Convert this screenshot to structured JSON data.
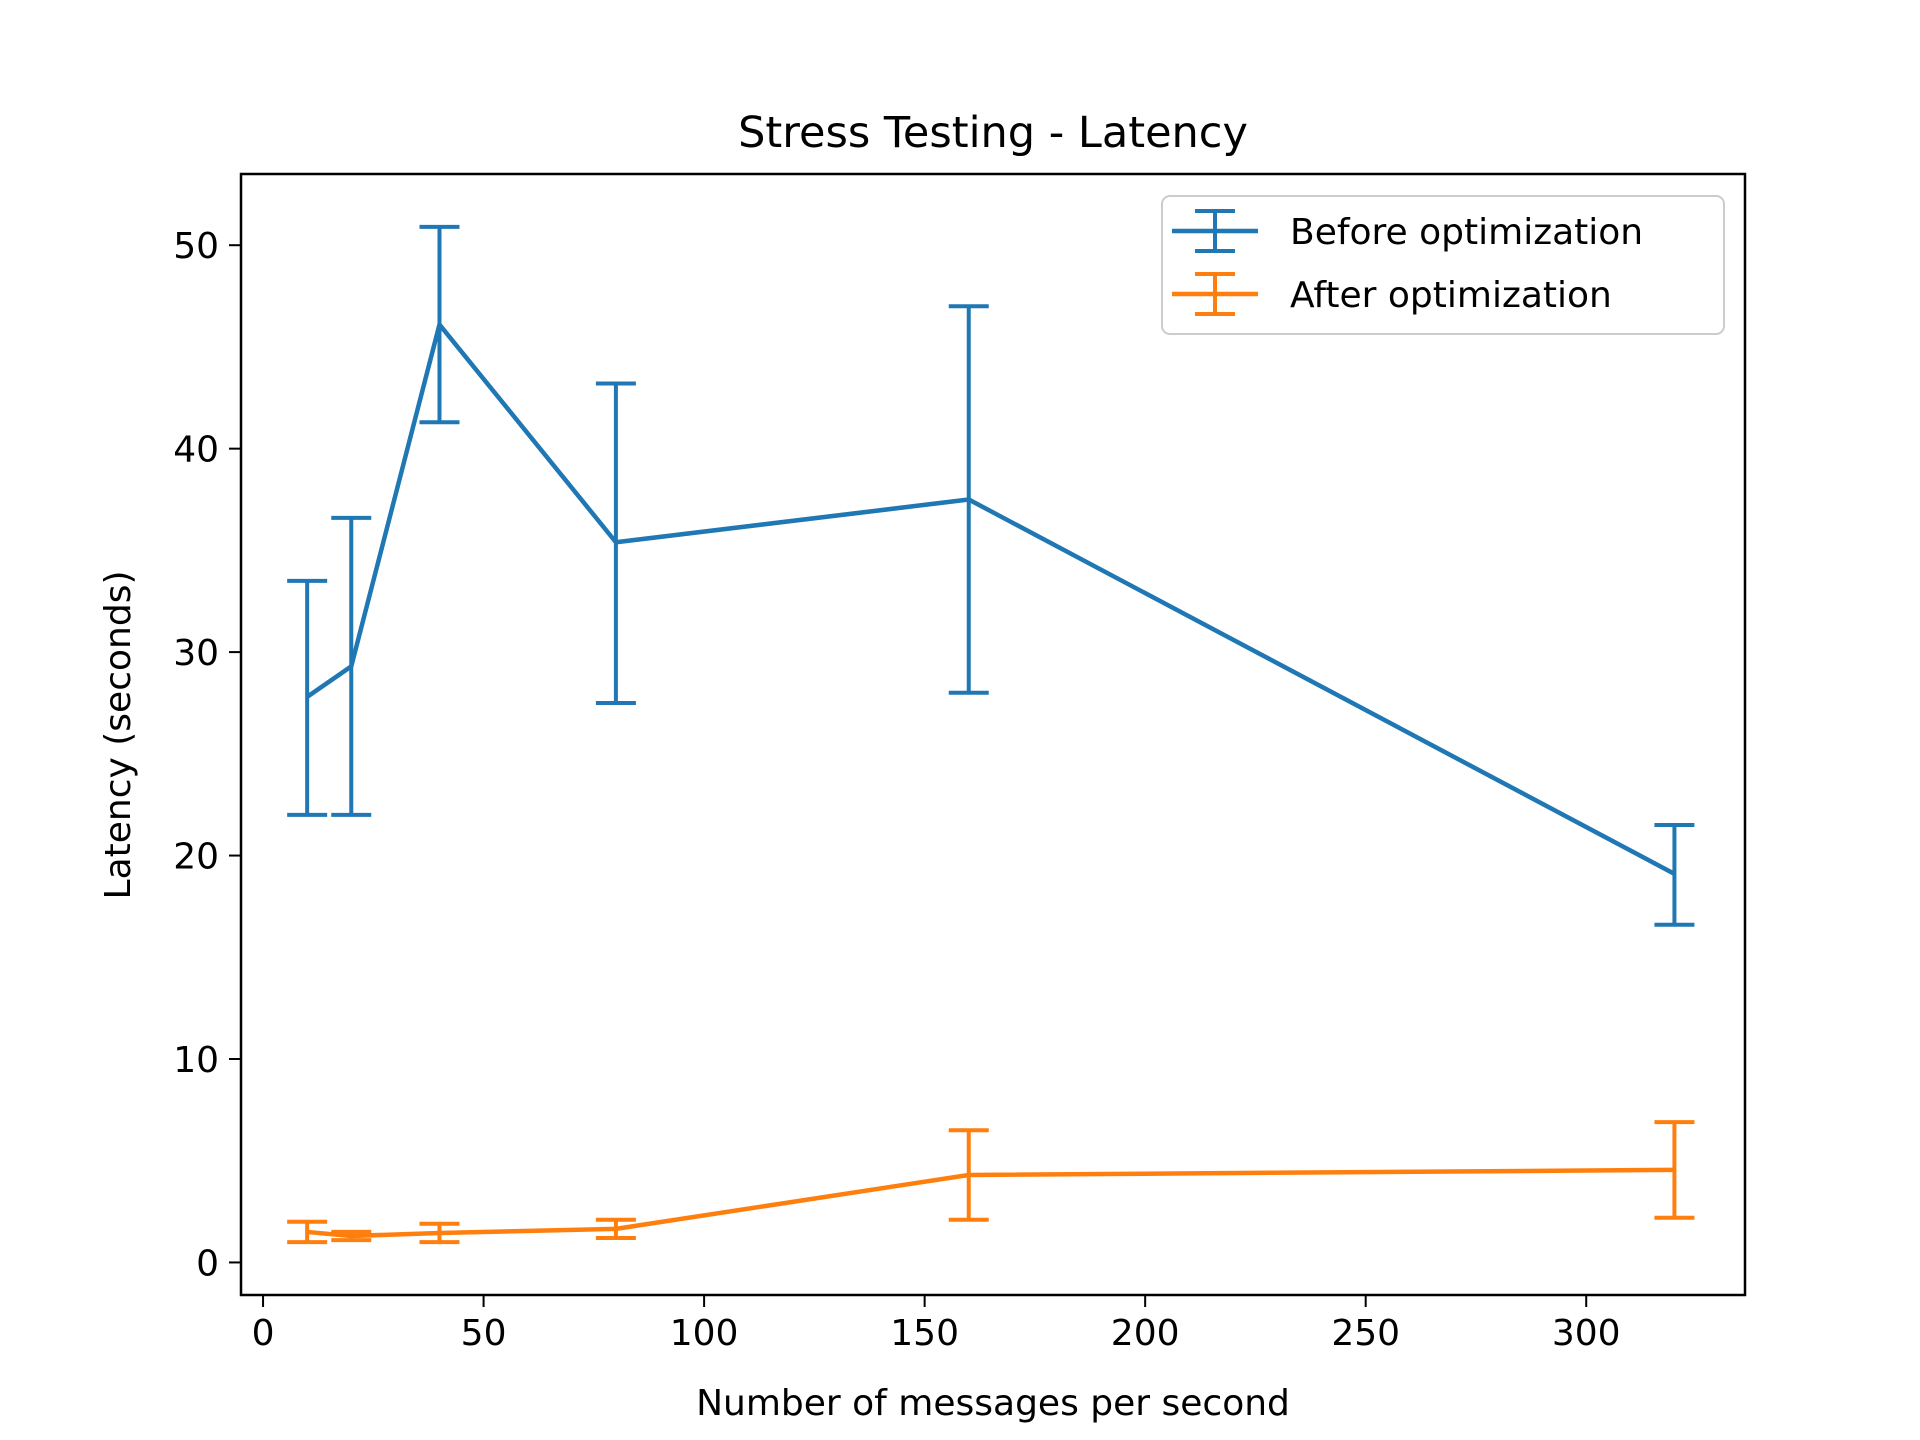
{
  "chart_data": {
    "type": "line",
    "title": "Stress Testing - Latency",
    "xlabel": "Number of messages per second",
    "ylabel": "Latency (seconds)",
    "xlim": [
      -5,
      336
    ],
    "ylim": [
      -1.6,
      53.5
    ],
    "xticks": [
      0,
      50,
      100,
      150,
      200,
      250,
      300
    ],
    "yticks": [
      0,
      10,
      20,
      30,
      40,
      50
    ],
    "grid": false,
    "legend_position": "top-right",
    "x": [
      10,
      20,
      40,
      80,
      160,
      320
    ],
    "series": [
      {
        "name": "Before optimization",
        "color": "#1f77b4",
        "values": [
          27.8,
          29.3,
          46.1,
          35.4,
          37.5,
          19.1
        ],
        "error_low": [
          22.0,
          22.0,
          41.3,
          27.5,
          28.0,
          16.6
        ],
        "error_high": [
          33.5,
          36.6,
          50.9,
          43.2,
          47.0,
          21.5
        ]
      },
      {
        "name": "After optimization",
        "color": "#ff7f0e",
        "values": [
          1.5,
          1.3,
          1.45,
          1.65,
          4.3,
          4.55
        ],
        "error_low": [
          1.0,
          1.1,
          1.0,
          1.2,
          2.1,
          2.2
        ],
        "error_high": [
          2.0,
          1.5,
          1.9,
          2.1,
          6.5,
          6.9
        ]
      }
    ]
  }
}
